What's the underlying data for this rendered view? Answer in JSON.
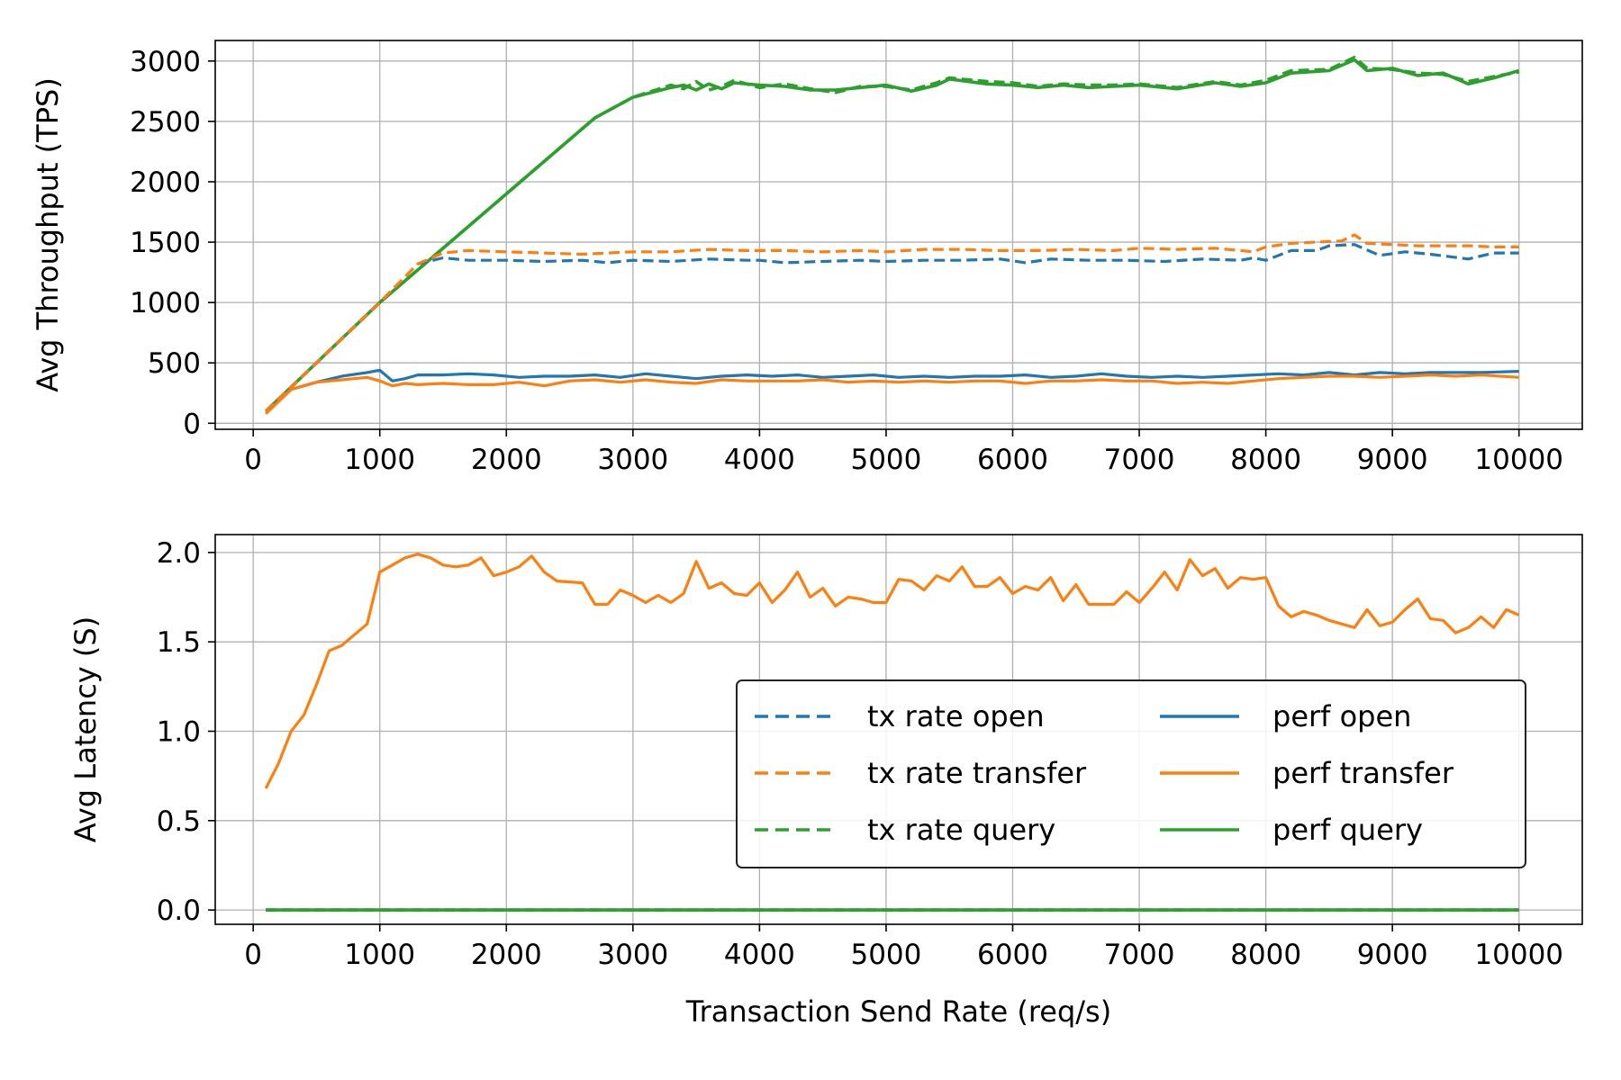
{
  "colors": {
    "open": "#1f77b4",
    "transfer": "#ff7f0e",
    "query": "#2ca02c",
    "grid": "#b0b0b0",
    "axes": "#000000",
    "legend_edge": "#222222"
  },
  "legend": {
    "placement": "center-right of lower panel",
    "columns": 2,
    "entries": [
      {
        "label": "tx rate open",
        "color": "open",
        "style": "dashed"
      },
      {
        "label": "tx rate transfer",
        "color": "transfer",
        "style": "dashed"
      },
      {
        "label": "tx rate query",
        "color": "query",
        "style": "dashed"
      },
      {
        "label": "perf open",
        "color": "open",
        "style": "solid"
      },
      {
        "label": "perf transfer",
        "color": "transfer",
        "style": "solid"
      },
      {
        "label": "perf query",
        "color": "query",
        "style": "solid"
      }
    ]
  },
  "chart_data": [
    {
      "type": "line",
      "panel": "top",
      "title": "",
      "xlabel": "",
      "ylabel": "Avg Throughput (TPS)",
      "xlim": [
        -300,
        10500
      ],
      "ylim": [
        -50,
        3170
      ],
      "xticks": [
        0,
        1000,
        2000,
        3000,
        4000,
        5000,
        6000,
        7000,
        8000,
        9000,
        10000
      ],
      "yticks": [
        0,
        500,
        1000,
        1500,
        2000,
        2500,
        3000
      ],
      "grid": true,
      "series": [
        {
          "name": "tx rate query",
          "color": "query",
          "style": "dashed",
          "width": 3.6,
          "x": [
            100,
            500,
            1000,
            1500,
            2000,
            2200,
            2700,
            3000,
            3300,
            3400,
            3500,
            3600,
            3700,
            3800,
            4000,
            4200,
            4400,
            4600,
            4800,
            5000,
            5200,
            5400,
            5500,
            5800,
            6000,
            6200,
            6400,
            6600,
            6800,
            7000,
            7300,
            7600,
            7800,
            8000,
            8200,
            8500,
            8700,
            8800,
            9000,
            9200,
            9400,
            9600,
            9800,
            10000
          ],
          "y": [
            100,
            500,
            1000,
            1450,
            1900,
            2080,
            2530,
            2700,
            2800,
            2770,
            2830,
            2760,
            2790,
            2840,
            2780,
            2810,
            2770,
            2740,
            2790,
            2790,
            2760,
            2820,
            2860,
            2830,
            2820,
            2790,
            2810,
            2800,
            2800,
            2810,
            2780,
            2830,
            2800,
            2840,
            2920,
            2930,
            3030,
            2940,
            2930,
            2900,
            2890,
            2830,
            2870,
            2910
          ]
        },
        {
          "name": "perf query",
          "color": "query",
          "style": "solid",
          "width": 3.6,
          "x": [
            100,
            500,
            1000,
            1500,
            2000,
            2200,
            2700,
            3000,
            3300,
            3400,
            3500,
            3600,
            3700,
            3800,
            4000,
            4200,
            4400,
            4600,
            4800,
            5000,
            5200,
            5400,
            5500,
            5800,
            6000,
            6200,
            6400,
            6600,
            6800,
            7000,
            7300,
            7600,
            7800,
            8000,
            8200,
            8500,
            8700,
            8800,
            9000,
            9200,
            9400,
            9600,
            9800,
            10000
          ],
          "y": [
            100,
            500,
            1000,
            1450,
            1900,
            2080,
            2530,
            2700,
            2780,
            2800,
            2760,
            2810,
            2770,
            2820,
            2800,
            2790,
            2760,
            2760,
            2780,
            2800,
            2750,
            2800,
            2850,
            2810,
            2800,
            2780,
            2800,
            2780,
            2790,
            2800,
            2770,
            2820,
            2790,
            2820,
            2900,
            2920,
            3010,
            2920,
            2940,
            2880,
            2900,
            2810,
            2860,
            2920
          ]
        },
        {
          "name": "tx rate open",
          "color": "open",
          "style": "dashed",
          "width": 3.2,
          "x": [
            100,
            500,
            1000,
            1300,
            1500,
            1700,
            2000,
            2300,
            2600,
            2800,
            3000,
            3300,
            3600,
            3900,
            4000,
            4200,
            4500,
            4800,
            5000,
            5300,
            5600,
            5900,
            6100,
            6300,
            6600,
            6900,
            7200,
            7500,
            7800,
            7900,
            8000,
            8200,
            8400,
            8500,
            8700,
            8900,
            9100,
            9300,
            9600,
            9800,
            10000
          ],
          "y": [
            100,
            500,
            1000,
            1320,
            1370,
            1350,
            1350,
            1340,
            1350,
            1330,
            1350,
            1340,
            1360,
            1350,
            1350,
            1330,
            1340,
            1350,
            1340,
            1350,
            1350,
            1360,
            1330,
            1360,
            1350,
            1350,
            1340,
            1360,
            1350,
            1370,
            1350,
            1430,
            1430,
            1470,
            1480,
            1390,
            1420,
            1400,
            1360,
            1410,
            1410
          ]
        },
        {
          "name": "tx rate transfer",
          "color": "transfer",
          "style": "dashed",
          "width": 3.2,
          "x": [
            100,
            500,
            1000,
            1300,
            1500,
            1700,
            2000,
            2300,
            2600,
            2800,
            3000,
            3300,
            3600,
            3900,
            4200,
            4500,
            4800,
            5000,
            5300,
            5600,
            5900,
            6200,
            6500,
            6800,
            7000,
            7300,
            7600,
            7800,
            7900,
            8000,
            8200,
            8400,
            8600,
            8700,
            8800,
            9000,
            9200,
            9400,
            9600,
            9800,
            10000
          ],
          "y": [
            100,
            500,
            1000,
            1320,
            1410,
            1430,
            1420,
            1410,
            1400,
            1410,
            1420,
            1420,
            1440,
            1430,
            1430,
            1420,
            1430,
            1420,
            1440,
            1440,
            1430,
            1430,
            1440,
            1430,
            1450,
            1440,
            1450,
            1430,
            1420,
            1460,
            1490,
            1500,
            1510,
            1560,
            1490,
            1480,
            1470,
            1470,
            1470,
            1460,
            1460
          ]
        },
        {
          "name": "perf open",
          "color": "open",
          "style": "solid",
          "width": 3.2,
          "x": [
            100,
            300,
            500,
            700,
            900,
            1000,
            1100,
            1200,
            1300,
            1500,
            1700,
            1900,
            2100,
            2300,
            2500,
            2700,
            2900,
            3100,
            3300,
            3500,
            3700,
            3900,
            4100,
            4300,
            4500,
            4700,
            4900,
            5100,
            5300,
            5500,
            5700,
            5900,
            6100,
            6300,
            6500,
            6700,
            6900,
            7100,
            7300,
            7500,
            7700,
            7900,
            8100,
            8300,
            8500,
            8700,
            8900,
            9100,
            9300,
            9500,
            9700,
            10000
          ],
          "y": [
            80,
            280,
            340,
            390,
            420,
            440,
            350,
            370,
            400,
            400,
            410,
            400,
            380,
            390,
            390,
            400,
            380,
            410,
            390,
            370,
            390,
            400,
            390,
            400,
            380,
            390,
            400,
            380,
            390,
            380,
            390,
            390,
            400,
            380,
            390,
            410,
            390,
            380,
            390,
            380,
            390,
            400,
            410,
            400,
            420,
            400,
            420,
            410,
            420,
            420,
            420,
            430
          ]
        },
        {
          "name": "perf transfer",
          "color": "transfer",
          "style": "solid",
          "width": 3.2,
          "x": [
            100,
            300,
            500,
            700,
            900,
            1000,
            1100,
            1200,
            1300,
            1500,
            1700,
            1900,
            2100,
            2300,
            2500,
            2700,
            2900,
            3100,
            3300,
            3500,
            3700,
            3900,
            4100,
            4300,
            4500,
            4700,
            4900,
            5100,
            5300,
            5500,
            5700,
            5900,
            6100,
            6300,
            6500,
            6700,
            6900,
            7100,
            7300,
            7500,
            7700,
            7900,
            8100,
            8300,
            8500,
            8700,
            8900,
            9100,
            9300,
            9500,
            9700,
            10000
          ],
          "y": [
            80,
            280,
            340,
            360,
            380,
            350,
            310,
            330,
            320,
            330,
            320,
            320,
            340,
            310,
            350,
            360,
            340,
            360,
            340,
            330,
            360,
            350,
            350,
            350,
            360,
            340,
            350,
            340,
            350,
            340,
            350,
            350,
            330,
            350,
            350,
            360,
            350,
            350,
            330,
            340,
            330,
            350,
            370,
            380,
            390,
            390,
            380,
            390,
            400,
            390,
            400,
            380
          ]
        }
      ]
    },
    {
      "type": "line",
      "panel": "bottom",
      "title": "",
      "xlabel": "Transaction Send Rate (req/s)",
      "ylabel": "Avg Latency (S)",
      "xlim": [
        -300,
        10500
      ],
      "ylim": [
        -0.08,
        2.1
      ],
      "xticks": [
        0,
        1000,
        2000,
        3000,
        4000,
        5000,
        6000,
        7000,
        8000,
        9000,
        10000
      ],
      "yticks": [
        0.0,
        0.5,
        1.0,
        1.5,
        2.0
      ],
      "grid": true,
      "series": [
        {
          "name": "perf query",
          "color": "query",
          "style": "solid",
          "width": 3.6,
          "x": [
            100,
            10000
          ],
          "y": [
            0.0,
            0.0
          ]
        },
        {
          "name": "tx rate query",
          "color": "query",
          "style": "dashed",
          "width": 3.6,
          "x": [
            100,
            10000
          ],
          "y": [
            0.0,
            0.0
          ]
        },
        {
          "name": "perf transfer",
          "color": "transfer",
          "style": "solid",
          "width": 3.2,
          "x": [
            100,
            200,
            300,
            400,
            500,
            600,
            700,
            800,
            900,
            1000,
            1100,
            1200,
            1300,
            1400,
            1500,
            1600,
            1700,
            1800,
            1900,
            2000,
            2100,
            2200,
            2300,
            2400,
            2600,
            2700,
            2800,
            2900,
            3000,
            3100,
            3200,
            3300,
            3400,
            3500,
            3600,
            3700,
            3800,
            3900,
            4000,
            4100,
            4200,
            4300,
            4400,
            4500,
            4600,
            4700,
            4800,
            4900,
            5000,
            5100,
            5200,
            5300,
            5400,
            5500,
            5600,
            5700,
            5800,
            5900,
            6000,
            6100,
            6200,
            6300,
            6400,
            6500,
            6600,
            6700,
            6800,
            6900,
            7000,
            7100,
            7200,
            7300,
            7400,
            7500,
            7600,
            7700,
            7800,
            7900,
            8000,
            8100,
            8200,
            8300,
            8400,
            8500,
            8600,
            8700,
            8800,
            8900,
            9000,
            9100,
            9200,
            9300,
            9400,
            9500,
            9600,
            9700,
            9800,
            9900,
            10000
          ],
          "y": [
            0.68,
            0.82,
            1.0,
            1.09,
            1.26,
            1.45,
            1.48,
            1.54,
            1.6,
            1.89,
            1.93,
            1.97,
            1.99,
            1.97,
            1.93,
            1.92,
            1.93,
            1.97,
            1.87,
            1.89,
            1.92,
            1.98,
            1.89,
            1.84,
            1.83,
            1.71,
            1.71,
            1.79,
            1.76,
            1.72,
            1.76,
            1.72,
            1.77,
            1.95,
            1.8,
            1.83,
            1.77,
            1.76,
            1.83,
            1.72,
            1.79,
            1.89,
            1.75,
            1.8,
            1.7,
            1.75,
            1.74,
            1.72,
            1.72,
            1.85,
            1.84,
            1.79,
            1.87,
            1.84,
            1.92,
            1.81,
            1.81,
            1.86,
            1.77,
            1.81,
            1.79,
            1.86,
            1.73,
            1.82,
            1.71,
            1.71,
            1.71,
            1.78,
            1.72,
            1.8,
            1.89,
            1.79,
            1.96,
            1.87,
            1.91,
            1.8,
            1.86,
            1.85,
            1.86,
            1.7,
            1.64,
            1.67,
            1.65,
            1.62,
            1.6,
            1.58,
            1.68,
            1.59,
            1.61,
            1.68,
            1.74,
            1.63,
            1.62,
            1.55,
            1.58,
            1.64,
            1.58,
            1.68,
            1.65
          ]
        }
      ]
    }
  ]
}
